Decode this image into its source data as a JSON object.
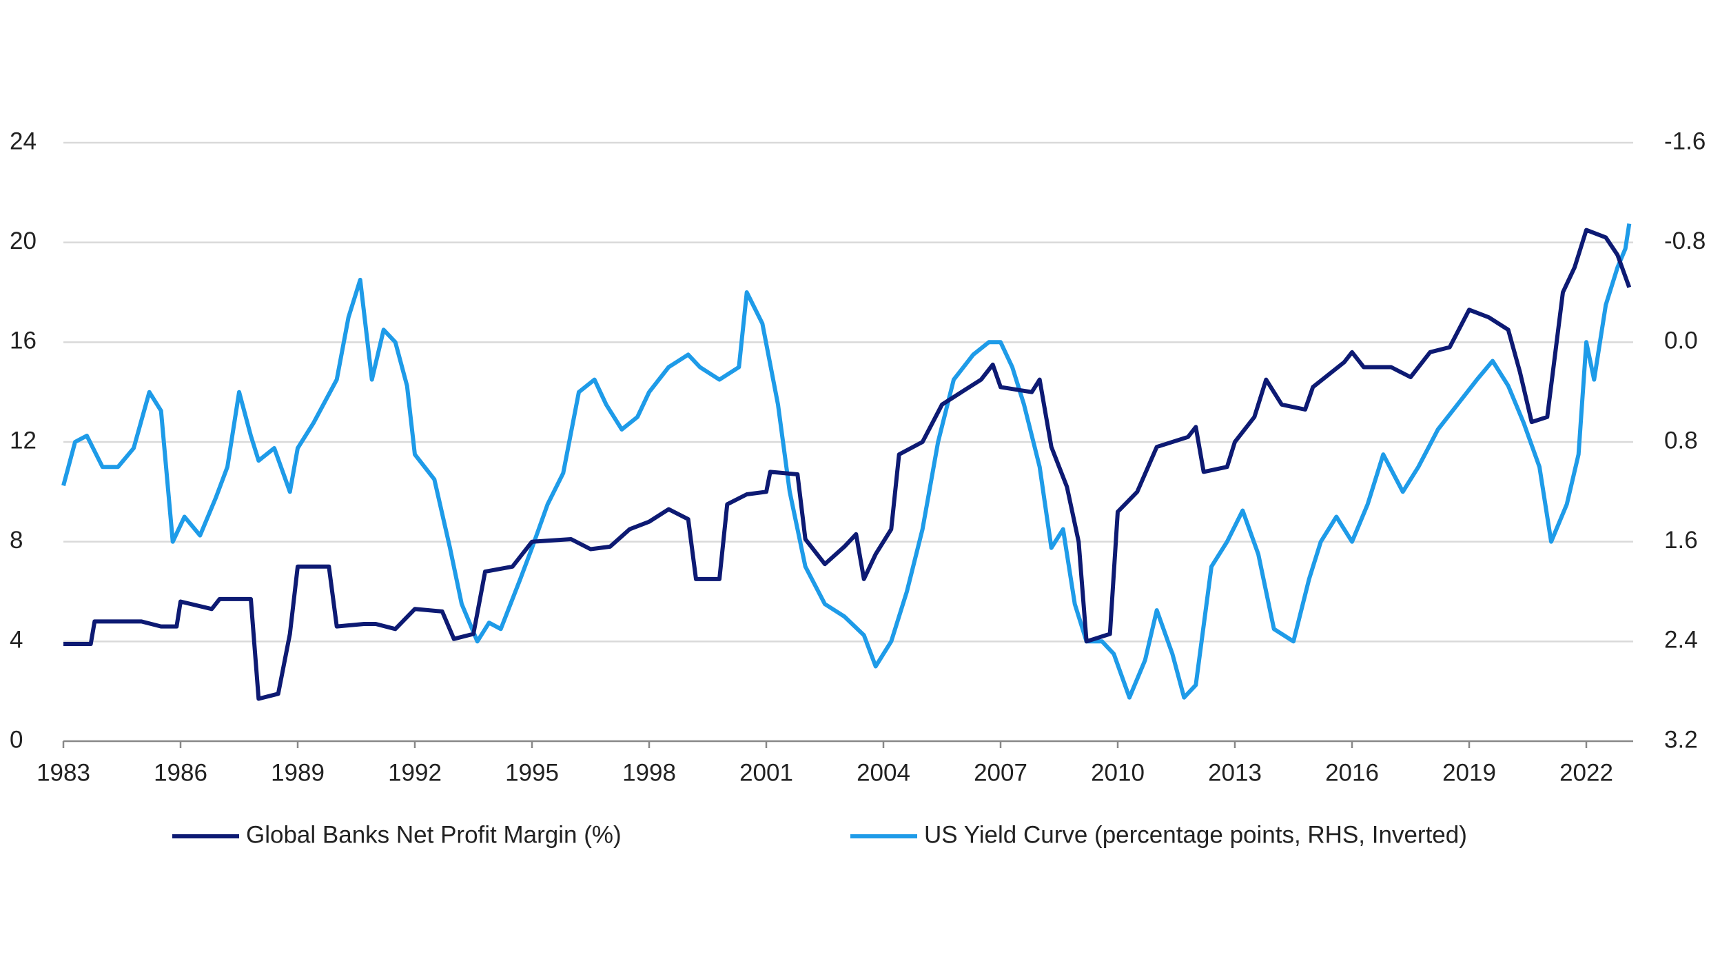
{
  "chart_data": {
    "type": "line",
    "xlim": [
      1983,
      2023.2
    ],
    "xticks": [
      1983,
      1986,
      1989,
      1992,
      1995,
      1998,
      2001,
      2004,
      2007,
      2010,
      2013,
      2016,
      2019,
      2022
    ],
    "ylim": [
      0,
      24
    ],
    "yticks": [
      0,
      4,
      8,
      12,
      16,
      20,
      24
    ],
    "y2lim": [
      3.2,
      -1.6
    ],
    "y2_inverted": true,
    "y2ticks": [
      3.2,
      2.4,
      1.6,
      0.8,
      {
        "value": 0,
        "label": "0.0"
      },
      -0.8,
      -1.6
    ],
    "grid": true,
    "legend": "bottom",
    "series": [
      {
        "name": "Global Banks Net Profit Margin (%)",
        "color": "#0d1a73",
        "x": [
          1983,
          1983.7,
          1983.8,
          1985,
          1985.5,
          1985.9,
          1986,
          1986.8,
          1987,
          1987.8,
          1988,
          1988.5,
          1988.8,
          1989,
          1989.8,
          1990,
          1990.7,
          1991,
          1991.5,
          1992,
          1992.7,
          1993,
          1993.5,
          1993.8,
          1994.5,
          1995,
          1996,
          1996.5,
          1997,
          1997.5,
          1998,
          1998.5,
          1999,
          1999.2,
          1999.8,
          2000,
          2000.5,
          2001,
          2001.1,
          2001.8,
          2002,
          2002.5,
          2003,
          2003.3,
          2003.5,
          2003.8,
          2004.2,
          2004.4,
          2005,
          2005.5,
          2006,
          2006.5,
          2006.8,
          2007,
          2007.8,
          2008,
          2008.3,
          2008.7,
          2009,
          2009.2,
          2009.8,
          2010,
          2010.5,
          2011,
          2011.8,
          2012,
          2012.2,
          2012.8,
          2013,
          2013.5,
          2013.8,
          2014.2,
          2014.8,
          2015,
          2015.8,
          2016,
          2016.3,
          2017,
          2017.5,
          2018,
          2018.5,
          2019,
          2019.5,
          2020,
          2020.3,
          2020.6,
          2021,
          2021.4,
          2021.7,
          2022,
          2022.5,
          2022.8,
          2023.1
        ],
        "values": [
          3.9,
          3.9,
          4.8,
          4.8,
          4.6,
          4.6,
          5.6,
          5.3,
          5.7,
          5.7,
          1.7,
          1.9,
          4.3,
          7.0,
          7.0,
          4.6,
          4.7,
          4.7,
          4.5,
          5.3,
          5.2,
          4.1,
          4.3,
          6.8,
          7.0,
          8.0,
          8.1,
          7.7,
          7.8,
          8.5,
          8.8,
          9.3,
          8.9,
          6.5,
          6.5,
          9.5,
          9.9,
          10.0,
          10.8,
          10.7,
          8.1,
          7.1,
          7.8,
          8.3,
          6.5,
          7.5,
          8.5,
          11.5,
          12.0,
          13.5,
          14.0,
          14.5,
          15.1,
          14.2,
          14.0,
          14.5,
          11.8,
          10.2,
          8.0,
          4.0,
          4.3,
          9.2,
          10.0,
          11.8,
          12.2,
          12.6,
          10.8,
          11.0,
          12.0,
          13.0,
          14.5,
          13.5,
          13.3,
          14.2,
          15.2,
          15.6,
          15.0,
          15.0,
          14.6,
          15.6,
          15.8,
          17.3,
          17.0,
          16.5,
          14.8,
          12.8,
          13.0,
          18.0,
          19.0,
          20.5,
          20.2,
          19.5,
          18.2
        ]
      },
      {
        "name": "US Yield Curve (percentage points, RHS, Inverted)",
        "color": "#1e9be8",
        "axis": "y2",
        "x": [
          1983,
          1983.3,
          1983.6,
          1984,
          1984.4,
          1984.8,
          1985.2,
          1985.5,
          1985.8,
          1986.1,
          1986.5,
          1986.9,
          1987.2,
          1987.5,
          1987.8,
          1988,
          1988.4,
          1988.8,
          1989,
          1989.4,
          1990,
          1990.3,
          1990.6,
          1990.9,
          1991.2,
          1991.5,
          1991.8,
          1992,
          1992.5,
          1992.9,
          1993.2,
          1993.6,
          1993.9,
          1994.2,
          1994.7,
          1995,
          1995.4,
          1995.8,
          1996.2,
          1996.6,
          1996.9,
          1997.3,
          1997.7,
          1998,
          1998.5,
          1999,
          1999.3,
          1999.8,
          2000.3,
          2000.5,
          2000.9,
          2001.3,
          2001.6,
          2002,
          2002.5,
          2003,
          2003.5,
          2003.8,
          2004.2,
          2004.6,
          2005,
          2005.4,
          2005.8,
          2006.3,
          2006.7,
          2007,
          2007.3,
          2007.6,
          2008,
          2008.3,
          2008.6,
          2008.9,
          2009.2,
          2009.6,
          2009.9,
          2010.3,
          2010.7,
          2011,
          2011.4,
          2011.7,
          2012,
          2012.4,
          2012.8,
          2013.2,
          2013.6,
          2014,
          2014.5,
          2014.9,
          2015.2,
          2015.6,
          2016,
          2016.4,
          2016.8,
          2017.3,
          2017.7,
          2018.2,
          2018.7,
          2019.2,
          2019.6,
          2020,
          2020.4,
          2020.8,
          2021.1,
          2021.5,
          2021.8,
          2022,
          2022.2,
          2022.5,
          2022.8,
          2023,
          2023.1
        ],
        "values": [
          1.15,
          0.8,
          0.75,
          1.0,
          1.0,
          0.85,
          0.4,
          0.55,
          1.6,
          1.4,
          1.55,
          1.25,
          1.0,
          0.4,
          0.75,
          0.95,
          0.85,
          1.2,
          0.85,
          0.65,
          0.3,
          -0.2,
          -0.5,
          0.3,
          -0.1,
          0.0,
          0.35,
          0.9,
          1.1,
          1.65,
          2.1,
          2.4,
          2.25,
          2.3,
          1.9,
          1.65,
          1.3,
          1.05,
          0.4,
          0.3,
          0.5,
          0.7,
          0.6,
          0.4,
          0.2,
          0.1,
          0.2,
          0.3,
          0.2,
          -0.4,
          -0.15,
          0.5,
          1.2,
          1.8,
          2.1,
          2.2,
          2.35,
          2.6,
          2.4,
          2.0,
          1.5,
          0.8,
          0.3,
          0.1,
          0.0,
          0.0,
          0.2,
          0.5,
          1.0,
          1.65,
          1.5,
          2.1,
          2.4,
          2.4,
          2.5,
          2.85,
          2.55,
          2.15,
          2.5,
          2.85,
          2.75,
          1.8,
          1.6,
          1.35,
          1.7,
          2.3,
          2.4,
          1.9,
          1.6,
          1.4,
          1.6,
          1.3,
          0.9,
          1.2,
          1.0,
          0.7,
          0.5,
          0.3,
          0.15,
          0.35,
          0.65,
          1.0,
          1.6,
          1.3,
          0.9,
          0.0,
          0.3,
          -0.3,
          -0.6,
          -0.75,
          -0.95
        ]
      }
    ]
  }
}
